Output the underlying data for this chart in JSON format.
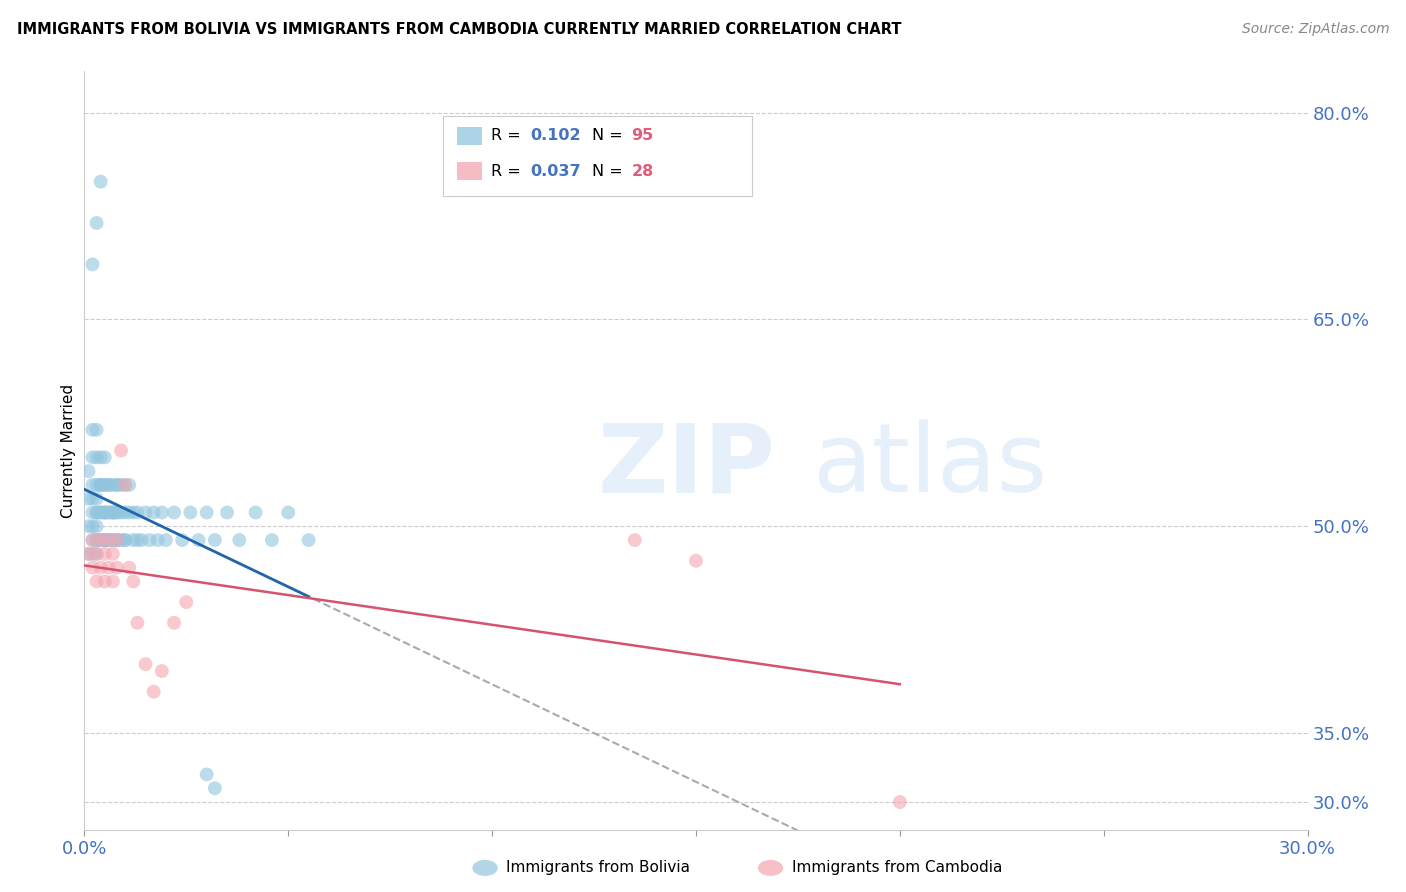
{
  "title": "IMMIGRANTS FROM BOLIVIA VS IMMIGRANTS FROM CAMBODIA CURRENTLY MARRIED CORRELATION CHART",
  "source": "Source: ZipAtlas.com",
  "ylabel": "Currently Married",
  "xlim": [
    0.0,
    0.3
  ],
  "ylim": [
    0.28,
    0.83
  ],
  "yticks": [
    0.3,
    0.35,
    0.5,
    0.65,
    0.8
  ],
  "ytick_labels": [
    "30.0%",
    "35.0%",
    "50.0%",
    "65.0%",
    "80.0%"
  ],
  "xticks": [
    0.0,
    0.05,
    0.1,
    0.15,
    0.2,
    0.25,
    0.3
  ],
  "xtick_labels": [
    "0.0%",
    "",
    "",
    "",
    "",
    "",
    "30.0%"
  ],
  "bolivia_color": "#92c5de",
  "cambodia_color": "#f4a6b0",
  "bolivia_line_color": "#2166ac",
  "cambodia_line_color": "#d6536d",
  "trend_line_color": "#aaaaaa",
  "background_color": "#ffffff",
  "grid_color": "#cccccc",
  "axis_label_color": "#4472c4",
  "bolivia_x": [
    0.001,
    0.001,
    0.001,
    0.001,
    0.002,
    0.002,
    0.002,
    0.002,
    0.002,
    0.002,
    0.002,
    0.002,
    0.003,
    0.003,
    0.003,
    0.003,
    0.003,
    0.003,
    0.003,
    0.003,
    0.003,
    0.003,
    0.004,
    0.004,
    0.004,
    0.004,
    0.004,
    0.004,
    0.004,
    0.004,
    0.005,
    0.005,
    0.005,
    0.005,
    0.005,
    0.005,
    0.005,
    0.005,
    0.005,
    0.006,
    0.006,
    0.006,
    0.006,
    0.006,
    0.006,
    0.006,
    0.007,
    0.007,
    0.007,
    0.007,
    0.007,
    0.007,
    0.008,
    0.008,
    0.008,
    0.008,
    0.008,
    0.008,
    0.009,
    0.009,
    0.009,
    0.01,
    0.01,
    0.01,
    0.01,
    0.011,
    0.011,
    0.012,
    0.012,
    0.013,
    0.013,
    0.014,
    0.015,
    0.016,
    0.017,
    0.018,
    0.019,
    0.02,
    0.022,
    0.024,
    0.026,
    0.028,
    0.03,
    0.032,
    0.035,
    0.038,
    0.042,
    0.046,
    0.05,
    0.055,
    0.002,
    0.003,
    0.004,
    0.03,
    0.032
  ],
  "bolivia_y": [
    0.48,
    0.5,
    0.52,
    0.54,
    0.49,
    0.51,
    0.53,
    0.55,
    0.57,
    0.48,
    0.5,
    0.52,
    0.49,
    0.51,
    0.53,
    0.55,
    0.57,
    0.48,
    0.5,
    0.52,
    0.49,
    0.51,
    0.53,
    0.55,
    0.49,
    0.51,
    0.53,
    0.49,
    0.51,
    0.53,
    0.49,
    0.51,
    0.53,
    0.55,
    0.49,
    0.51,
    0.53,
    0.49,
    0.51,
    0.49,
    0.51,
    0.53,
    0.49,
    0.51,
    0.53,
    0.49,
    0.51,
    0.53,
    0.49,
    0.51,
    0.49,
    0.51,
    0.49,
    0.51,
    0.53,
    0.49,
    0.51,
    0.53,
    0.49,
    0.51,
    0.53,
    0.49,
    0.51,
    0.53,
    0.49,
    0.51,
    0.53,
    0.49,
    0.51,
    0.49,
    0.51,
    0.49,
    0.51,
    0.49,
    0.51,
    0.49,
    0.51,
    0.49,
    0.51,
    0.49,
    0.51,
    0.49,
    0.51,
    0.49,
    0.51,
    0.49,
    0.51,
    0.49,
    0.51,
    0.49,
    0.69,
    0.72,
    0.75,
    0.32,
    0.31
  ],
  "cambodia_x": [
    0.001,
    0.002,
    0.002,
    0.003,
    0.003,
    0.004,
    0.004,
    0.005,
    0.005,
    0.006,
    0.006,
    0.007,
    0.007,
    0.008,
    0.008,
    0.009,
    0.01,
    0.011,
    0.012,
    0.013,
    0.015,
    0.017,
    0.019,
    0.022,
    0.025,
    0.15,
    0.2,
    0.135
  ],
  "cambodia_y": [
    0.48,
    0.49,
    0.47,
    0.48,
    0.46,
    0.49,
    0.47,
    0.48,
    0.46,
    0.49,
    0.47,
    0.48,
    0.46,
    0.49,
    0.47,
    0.555,
    0.53,
    0.47,
    0.46,
    0.43,
    0.4,
    0.38,
    0.395,
    0.43,
    0.445,
    0.475,
    0.3,
    0.49
  ]
}
